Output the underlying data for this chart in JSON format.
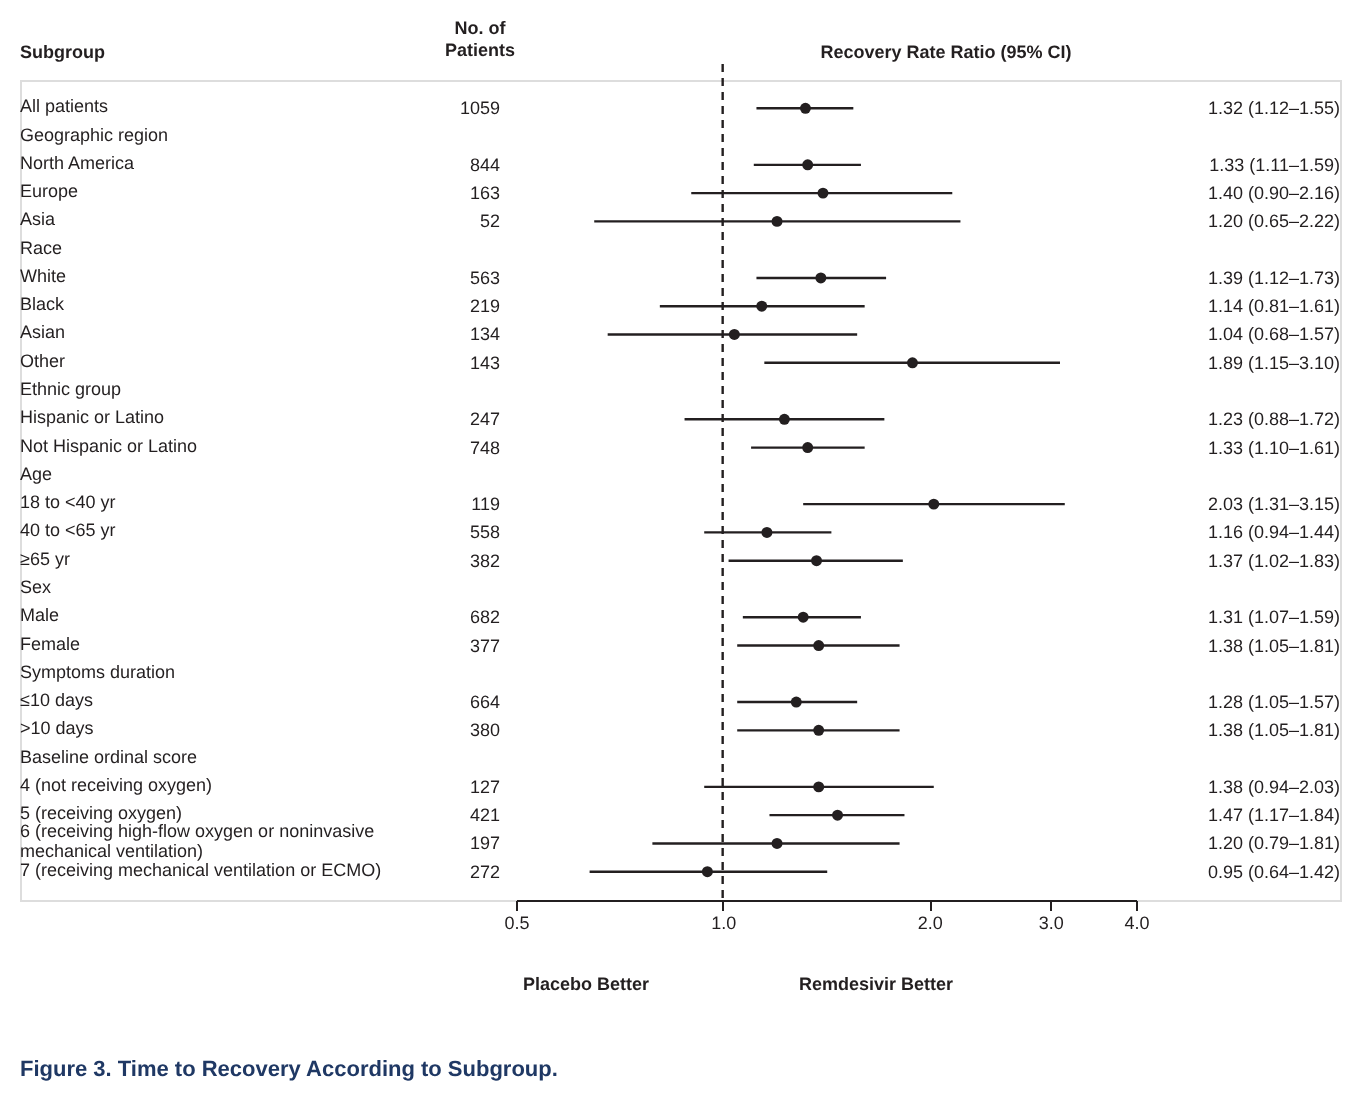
{
  "chart_data": {
    "type": "scatter",
    "orientation": "horizontal",
    "title": "Figure 3. Time to Recovery According to Subgroup.",
    "xlabel": "Recovery Rate Ratio (95% CI)",
    "categories": [
      "All patients",
      "Geographic region",
      "North America",
      "Europe",
      "Asia",
      "Race",
      "White",
      "Black",
      "Asian",
      "Other",
      "Ethnic group",
      "Hispanic or Latino",
      "Not Hispanic or Latino",
      "Age",
      "18 to <40 yr",
      "40 to <65 yr",
      "≥65 yr",
      "Sex",
      "Male",
      "Female",
      "Symptoms duration",
      "≤10 days",
      ">10 days",
      "Baseline ordinal score",
      "4 (not receiving oxygen)",
      "5 (receiving oxygen)",
      "6 (receiving high-flow oxygen or noninvasive mechanical ventilation)",
      "7 (receiving mechanical ventilation or ECMO)"
    ],
    "series": [
      {
        "color": "#231f20",
        "values": [
          1.32,
          null,
          1.33,
          1.4,
          1.2,
          null,
          1.39,
          1.14,
          1.04,
          1.89,
          null,
          1.23,
          1.33,
          null,
          2.03,
          1.16,
          1.37,
          null,
          1.31,
          1.38,
          null,
          1.28,
          1.38,
          null,
          1.38,
          1.47,
          1.2,
          0.95
        ],
        "errors": [
          [
            1.12,
            1.55
          ],
          null,
          [
            1.11,
            1.59
          ],
          [
            0.9,
            2.16
          ],
          [
            0.65,
            2.22
          ],
          null,
          [
            1.12,
            1.73
          ],
          [
            0.81,
            1.61
          ],
          [
            0.68,
            1.57
          ],
          [
            1.15,
            3.1
          ],
          null,
          [
            0.88,
            1.72
          ],
          [
            1.1,
            1.61
          ],
          null,
          [
            1.31,
            3.15
          ],
          [
            0.94,
            1.44
          ],
          [
            1.02,
            1.83
          ],
          null,
          [
            1.07,
            1.59
          ],
          [
            1.05,
            1.81
          ],
          null,
          [
            1.05,
            1.57
          ],
          [
            1.05,
            1.81
          ],
          null,
          [
            0.94,
            2.03
          ],
          [
            1.17,
            1.84
          ],
          [
            0.79,
            1.81
          ],
          [
            0.64,
            1.42
          ]
        ],
        "value_labels": [
          "1.32 (1.12–1.55)",
          null,
          "1.33 (1.11–1.59)",
          "1.40 (0.90–2.16)",
          "1.20 (0.65–2.22)",
          null,
          "1.39 (1.12–1.73)",
          "1.14 (0.81–1.61)",
          "1.04 (0.68–1.57)",
          "1.89 (1.15–3.10)",
          null,
          "1.23 (0.88–1.72)",
          "1.33 (1.10–1.61)",
          null,
          "2.03 (1.31–3.15)",
          "1.16 (0.94–1.44)",
          "1.37 (1.02–1.83)",
          null,
          "1.31 (1.07–1.59)",
          "1.38 (1.05–1.81)",
          null,
          "1.28 (1.05–1.57)",
          "1.38 (1.05–1.81)",
          null,
          "1.38 (0.94–2.03)",
          "1.47 (1.17–1.84)",
          "1.20 (0.79–1.81)",
          "0.95 (0.64–1.42)"
        ]
      }
    ],
    "log": "x",
    "xlim": [
      0.5,
      4
    ],
    "xticks": [
      0.5,
      {
        "value": 1,
        "label": "1.0"
      },
      {
        "value": 2,
        "label": "2.0"
      },
      {
        "value": 3,
        "label": "3.0"
      },
      {
        "value": 4,
        "label": "4.0"
      }
    ],
    "grid": false,
    "marker": "circle",
    "ref_lines": [
      {
        "axis": "x",
        "value": 1,
        "line_style": "dashed",
        "color": "#231f20"
      }
    ],
    "annotations": [
      "Subgroup",
      "No. of Patients",
      "Placebo Better",
      "Remdesivir Better",
      "1059",
      "844",
      "163",
      "52",
      "563",
      "219",
      "134",
      "143",
      "247",
      "748",
      "119",
      "558",
      "382",
      "682",
      "377",
      "664",
      "380",
      "127",
      "421",
      "197",
      "272"
    ]
  }
}
